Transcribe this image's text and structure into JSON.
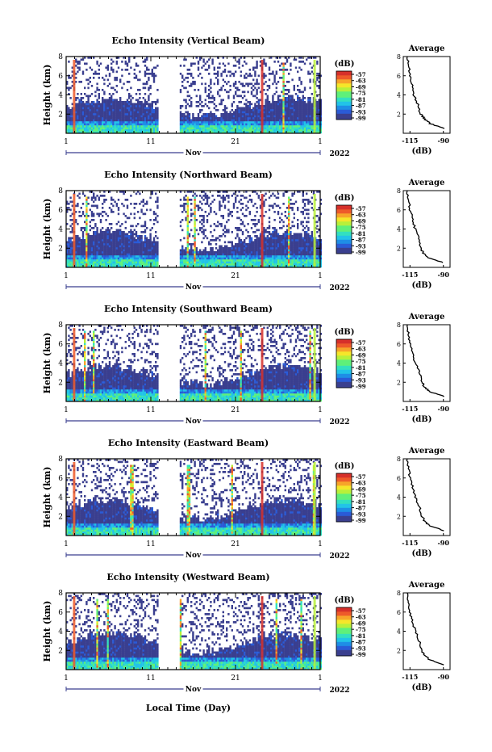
{
  "figure": {
    "xlabel": "Local Time (Day)",
    "year_label": "2022",
    "month_label": "Nov",
    "x_ticks": [
      "1",
      "11",
      "21",
      "1"
    ],
    "y_label": "Height (km)",
    "y_ticks": [
      "2",
      "4",
      "6",
      "8"
    ],
    "colorbar_unit": "(dB)",
    "colorbar_ticks": [
      "-57",
      "-63",
      "-69",
      "-75",
      "-81",
      "-87",
      "-93",
      "-99"
    ],
    "avg_title": "Average",
    "avg_x_ticks": [
      "-115",
      "-90"
    ],
    "avg_xlabel": "(dB)"
  },
  "colors": {
    "colormap": [
      "#3a3f8f",
      "#2a5bd7",
      "#1e8ee6",
      "#22c3e8",
      "#33e0c0",
      "#5ff07a",
      "#b8f03a",
      "#f5e62a",
      "#f7a52a",
      "#ee5a2a",
      "#d6302a"
    ],
    "background": "#ffffff",
    "axis": "#000000"
  },
  "chart_data": [
    {
      "type": "heatmap",
      "title": "Echo Intensity (Vertical Beam)",
      "x_range_days": [
        1,
        31
      ],
      "ylim_km": [
        0,
        8
      ],
      "clim_db": [
        -99,
        -57
      ],
      "data_gap_days": [
        11.9,
        14.2
      ],
      "average_profile": {
        "xlim_db": [
          -120,
          -85
        ],
        "height_km": [
          0.5,
          1,
          1.5,
          2,
          3,
          4,
          5,
          6,
          7,
          8
        ],
        "db": [
          -89,
          -100,
          -104,
          -107,
          -109,
          -112,
          -113,
          -115,
          -116,
          -117
        ]
      }
    },
    {
      "type": "heatmap",
      "title": "Echo Intensity (Northward Beam)",
      "x_range_days": [
        1,
        31
      ],
      "ylim_km": [
        0,
        8
      ],
      "clim_db": [
        -99,
        -57
      ],
      "data_gap_days": [
        11.9,
        14.2
      ],
      "average_profile": {
        "xlim_db": [
          -120,
          -85
        ],
        "height_km": [
          0.5,
          1,
          1.5,
          2,
          3,
          4,
          5,
          6,
          7,
          8
        ],
        "db": [
          -90,
          -101,
          -105,
          -107,
          -108,
          -111,
          -113,
          -115,
          -116,
          -117
        ]
      }
    },
    {
      "type": "heatmap",
      "title": "Echo Intensity (Southward Beam)",
      "x_range_days": [
        1,
        31
      ],
      "ylim_km": [
        0,
        8
      ],
      "clim_db": [
        -99,
        -57
      ],
      "data_gap_days": [
        11.9,
        14.2
      ],
      "average_profile": {
        "xlim_db": [
          -120,
          -85
        ],
        "height_km": [
          0.5,
          1,
          1.5,
          2,
          3,
          4,
          5,
          6,
          7,
          8
        ],
        "db": [
          -89,
          -100,
          -104,
          -106,
          -108,
          -111,
          -113,
          -115,
          -116,
          -117
        ]
      }
    },
    {
      "type": "heatmap",
      "title": "Echo Intensity (Eastward Beam)",
      "x_range_days": [
        1,
        31
      ],
      "ylim_km": [
        0,
        8
      ],
      "clim_db": [
        -99,
        -57
      ],
      "data_gap_days": [
        11.9,
        14.2
      ],
      "average_profile": {
        "xlim_db": [
          -120,
          -85
        ],
        "height_km": [
          0.5,
          1,
          1.5,
          2,
          3,
          4,
          5,
          6,
          7,
          8
        ],
        "db": [
          -89,
          -100,
          -104,
          -106,
          -108,
          -111,
          -113,
          -115,
          -116,
          -117
        ]
      }
    },
    {
      "type": "heatmap",
      "title": "Echo Intensity (Westward Beam)",
      "x_range_days": [
        1,
        31
      ],
      "ylim_km": [
        0,
        8
      ],
      "clim_db": [
        -99,
        -57
      ],
      "data_gap_days": [
        11.9,
        14.2
      ],
      "average_profile": {
        "xlim_db": [
          -120,
          -85
        ],
        "height_km": [
          0.5,
          1,
          1.5,
          2,
          3,
          4,
          5,
          6,
          7,
          8
        ],
        "db": [
          -89,
          -100,
          -104,
          -106,
          -108,
          -111,
          -113,
          -115,
          -116,
          -117
        ]
      }
    }
  ]
}
